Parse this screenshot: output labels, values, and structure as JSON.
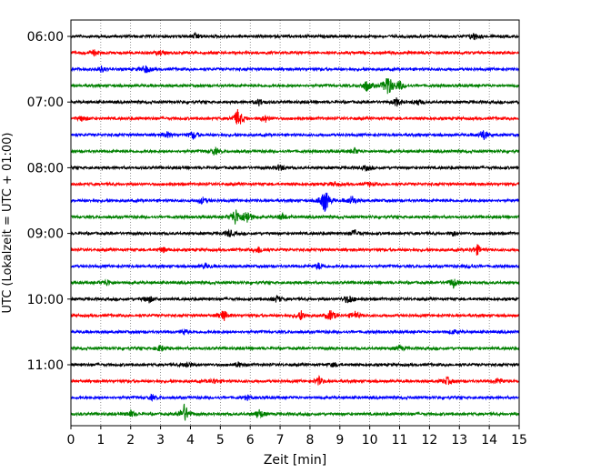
{
  "chart_data": {
    "type": "line",
    "title": "",
    "xlabel": "Zeit  [min]",
    "ylabel": "UTC (Lokalzeit = UTC + 01:00)",
    "xlim": [
      0,
      15
    ],
    "x_ticks": [
      0,
      1,
      2,
      3,
      4,
      5,
      6,
      7,
      8,
      9,
      10,
      11,
      12,
      13,
      14,
      15
    ],
    "y_tick_labels": [
      "06:00",
      "07:00",
      "08:00",
      "09:00",
      "10:00",
      "11:00"
    ],
    "grid": "vertical dotted",
    "trace_colors": [
      "#000000",
      "#ff0000",
      "#0000ff",
      "#008000"
    ],
    "series": [
      {
        "start": "06:00",
        "color": "#000000",
        "events": [
          [
            4.2,
            0.18
          ],
          [
            13.5,
            0.22
          ]
        ]
      },
      {
        "start": "06:15",
        "color": "#ff0000",
        "events": [
          [
            0.8,
            0.15
          ],
          [
            3.0,
            0.12
          ]
        ]
      },
      {
        "start": "06:30",
        "color": "#0000ff",
        "events": [
          [
            1.0,
            0.2
          ],
          [
            2.5,
            0.25
          ]
        ]
      },
      {
        "start": "06:45",
        "color": "#008000",
        "events": [
          [
            9.9,
            0.35
          ],
          [
            10.6,
            0.75
          ],
          [
            11.0,
            0.3
          ]
        ]
      },
      {
        "start": "07:00",
        "color": "#000000",
        "events": [
          [
            6.3,
            0.2
          ],
          [
            10.9,
            0.25
          ],
          [
            11.6,
            0.18
          ]
        ]
      },
      {
        "start": "07:15",
        "color": "#ff0000",
        "events": [
          [
            0.4,
            0.18
          ],
          [
            5.6,
            0.6
          ],
          [
            6.5,
            0.2
          ]
        ]
      },
      {
        "start": "07:30",
        "color": "#0000ff",
        "events": [
          [
            3.2,
            0.2
          ],
          [
            4.1,
            0.25
          ],
          [
            13.8,
            0.35
          ]
        ]
      },
      {
        "start": "07:45",
        "color": "#008000",
        "events": [
          [
            4.8,
            0.22
          ],
          [
            9.5,
            0.15
          ]
        ]
      },
      {
        "start": "08:00",
        "color": "#000000",
        "events": [
          [
            7.0,
            0.18
          ],
          [
            9.9,
            0.15
          ]
        ]
      },
      {
        "start": "08:15",
        "color": "#ff0000",
        "events": [
          [
            8.8,
            0.12
          ],
          [
            10.0,
            0.1
          ]
        ]
      },
      {
        "start": "08:30",
        "color": "#0000ff",
        "events": [
          [
            4.4,
            0.2
          ],
          [
            8.5,
            0.8
          ],
          [
            9.4,
            0.3
          ]
        ]
      },
      {
        "start": "08:45",
        "color": "#008000",
        "events": [
          [
            5.5,
            0.55
          ],
          [
            5.9,
            0.45
          ],
          [
            7.1,
            0.2
          ]
        ]
      },
      {
        "start": "09:00",
        "color": "#000000",
        "events": [
          [
            5.3,
            0.22
          ],
          [
            9.5,
            0.2
          ],
          [
            12.8,
            0.15
          ]
        ]
      },
      {
        "start": "09:15",
        "color": "#ff0000",
        "events": [
          [
            3.1,
            0.15
          ],
          [
            6.3,
            0.2
          ],
          [
            13.6,
            0.3
          ]
        ]
      },
      {
        "start": "09:30",
        "color": "#0000ff",
        "events": [
          [
            4.5,
            0.15
          ],
          [
            8.3,
            0.2
          ],
          [
            13.4,
            0.12
          ]
        ]
      },
      {
        "start": "09:45",
        "color": "#008000",
        "events": [
          [
            1.2,
            0.18
          ],
          [
            12.8,
            0.3
          ]
        ]
      },
      {
        "start": "10:00",
        "color": "#000000",
        "events": [
          [
            2.6,
            0.25
          ],
          [
            6.9,
            0.2
          ],
          [
            9.3,
            0.3
          ]
        ]
      },
      {
        "start": "10:15",
        "color": "#ff0000",
        "events": [
          [
            5.1,
            0.35
          ],
          [
            7.7,
            0.3
          ],
          [
            8.7,
            0.35
          ],
          [
            9.5,
            0.25
          ]
        ]
      },
      {
        "start": "10:30",
        "color": "#0000ff",
        "events": [
          [
            3.8,
            0.15
          ],
          [
            12.8,
            0.12
          ]
        ]
      },
      {
        "start": "10:45",
        "color": "#008000",
        "events": [
          [
            3.0,
            0.2
          ],
          [
            11.0,
            0.15
          ]
        ]
      },
      {
        "start": "11:00",
        "color": "#000000",
        "events": [
          [
            3.9,
            0.2
          ],
          [
            5.6,
            0.15
          ],
          [
            8.8,
            0.12
          ]
        ]
      },
      {
        "start": "11:15",
        "color": "#ff0000",
        "events": [
          [
            4.8,
            0.15
          ],
          [
            8.3,
            0.25
          ],
          [
            12.6,
            0.22
          ],
          [
            14.3,
            0.2
          ]
        ]
      },
      {
        "start": "11:30",
        "color": "#0000ff",
        "events": [
          [
            2.7,
            0.15
          ],
          [
            5.9,
            0.12
          ]
        ]
      },
      {
        "start": "11:45",
        "color": "#008000",
        "events": [
          [
            2.0,
            0.2
          ],
          [
            3.8,
            0.6
          ],
          [
            6.3,
            0.3
          ]
        ]
      }
    ]
  }
}
